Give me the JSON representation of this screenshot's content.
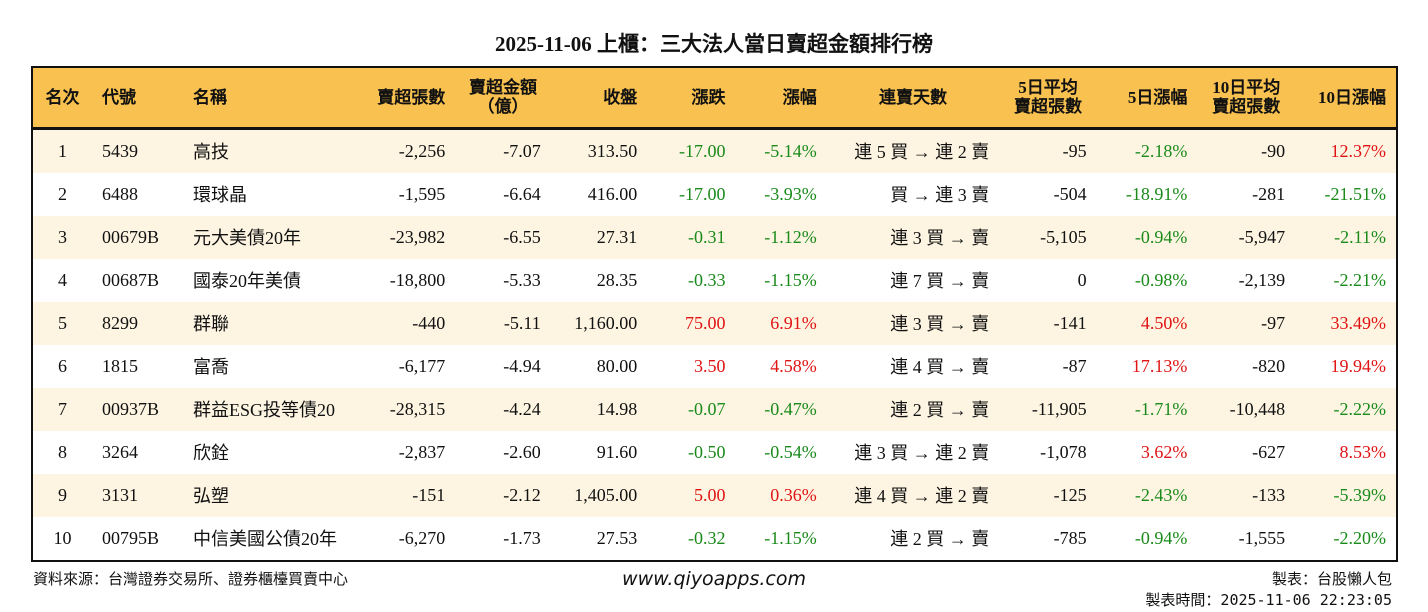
{
  "title": "2025-11-06 上櫃：三大法人當日賣超金額排行榜",
  "headers": [
    "名次",
    "代號",
    "名稱",
    "賣超張數",
    "賣超金額\n（億）",
    "收盤",
    "漲跌",
    "漲幅",
    "連賣天數",
    "5日平均\n賣超張數",
    "5日漲幅",
    "10日平均\n賣超張數",
    "10日漲幅"
  ],
  "colors": {
    "header_bg": "#f8c150",
    "up": "#e01414",
    "down": "#1a8a1a"
  },
  "rows": [
    [
      "1",
      "5439",
      "高技",
      "-2,256",
      "-7.07",
      "313.50",
      "-17.00",
      "-5.14%",
      "連 5 買 → 連 2 賣",
      "-95",
      "-2.18%",
      "-90",
      "12.37%"
    ],
    [
      "2",
      "6488",
      "環球晶",
      "-1,595",
      "-6.64",
      "416.00",
      "-17.00",
      "-3.93%",
      "買 → 連 3 賣",
      "-504",
      "-18.91%",
      "-281",
      "-21.51%"
    ],
    [
      "3",
      "00679B",
      "元大美債20年",
      "-23,982",
      "-6.55",
      "27.31",
      "-0.31",
      "-1.12%",
      "連 3 買 → 賣",
      "-5,105",
      "-0.94%",
      "-5,947",
      "-2.11%"
    ],
    [
      "4",
      "00687B",
      "國泰20年美債",
      "-18,800",
      "-5.33",
      "28.35",
      "-0.33",
      "-1.15%",
      "連 7 買 → 賣",
      "0",
      "-0.98%",
      "-2,139",
      "-2.21%"
    ],
    [
      "5",
      "8299",
      "群聯",
      "-440",
      "-5.11",
      "1,160.00",
      "75.00",
      "6.91%",
      "連 3 買 → 賣",
      "-141",
      "4.50%",
      "-97",
      "33.49%"
    ],
    [
      "6",
      "1815",
      "富喬",
      "-6,177",
      "-4.94",
      "80.00",
      "3.50",
      "4.58%",
      "連 4 買 → 賣",
      "-87",
      "17.13%",
      "-820",
      "19.94%"
    ],
    [
      "7",
      "00937B",
      "群益ESG投等債20",
      "-28,315",
      "-4.24",
      "14.98",
      "-0.07",
      "-0.47%",
      "連 2 買 → 賣",
      "-11,905",
      "-1.71%",
      "-10,448",
      "-2.22%"
    ],
    [
      "8",
      "3264",
      "欣銓",
      "-2,837",
      "-2.60",
      "91.60",
      "-0.50",
      "-0.54%",
      "連 3 買 → 連 2 賣",
      "-1,078",
      "3.62%",
      "-627",
      "8.53%"
    ],
    [
      "9",
      "3131",
      "弘塑",
      "-151",
      "-2.12",
      "1,405.00",
      "5.00",
      "0.36%",
      "連 4 買 → 連 2 賣",
      "-125",
      "-2.43%",
      "-133",
      "-5.39%"
    ],
    [
      "10",
      "00795B",
      "中信美國公債20年",
      "-6,270",
      "-1.73",
      "27.53",
      "-0.32",
      "-1.15%",
      "連 2 買 → 賣",
      "-785",
      "-0.94%",
      "-1,555",
      "-2.20%"
    ]
  ],
  "footer": {
    "source": "資料來源：台灣證券交易所、證券櫃檯買賣中心",
    "url": "www.qiyoapps.com",
    "maker": "製表：台股懶人包",
    "time": "製表時間：2025-11-06 22:23:05"
  }
}
